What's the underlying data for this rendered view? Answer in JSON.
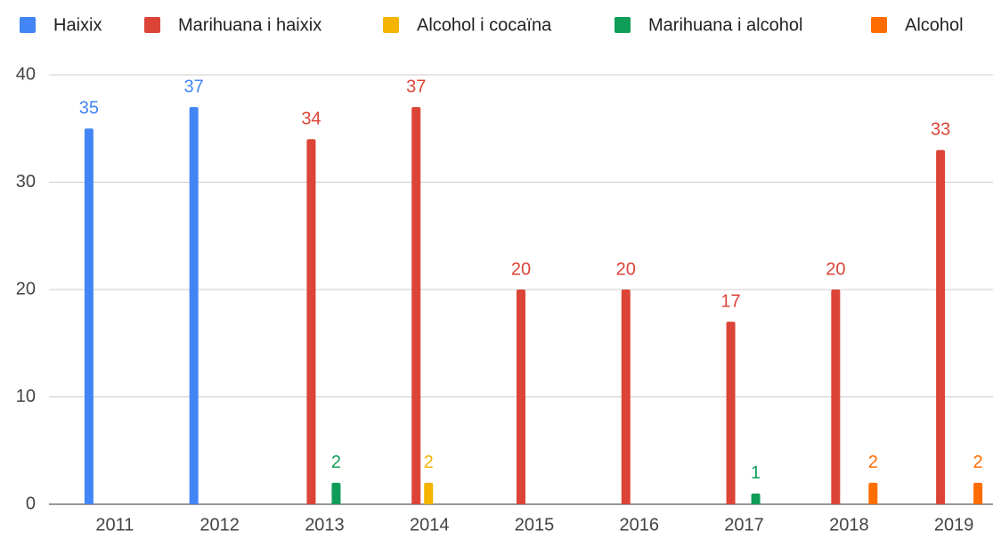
{
  "chart_data": {
    "type": "bar",
    "categories": [
      "2011",
      "2012",
      "2013",
      "2014",
      "2015",
      "2016",
      "2017",
      "2018",
      "2019"
    ],
    "series": [
      {
        "name": "Haixix",
        "color": "#4285f4",
        "values": [
          35,
          37,
          null,
          null,
          null,
          null,
          null,
          null,
          null
        ]
      },
      {
        "name": "Marihuana i haixix",
        "color": "#db4437",
        "values": [
          null,
          null,
          34,
          37,
          20,
          20,
          17,
          20,
          33
        ]
      },
      {
        "name": "Alcohol i cocaïna",
        "color": "#f4b400",
        "values": [
          null,
          null,
          null,
          2,
          null,
          null,
          null,
          null,
          null
        ]
      },
      {
        "name": "Marihuana i alcohol",
        "color": "#0f9d58",
        "values": [
          null,
          null,
          2,
          null,
          null,
          null,
          1,
          null,
          null
        ]
      },
      {
        "name": "Alcohol",
        "color": "#ff6d00",
        "values": [
          null,
          null,
          null,
          null,
          null,
          null,
          null,
          2,
          2
        ]
      }
    ],
    "ylim": [
      0,
      40
    ],
    "yticks": [
      0,
      10,
      20,
      30,
      40
    ],
    "grid": true,
    "legend": "top"
  }
}
